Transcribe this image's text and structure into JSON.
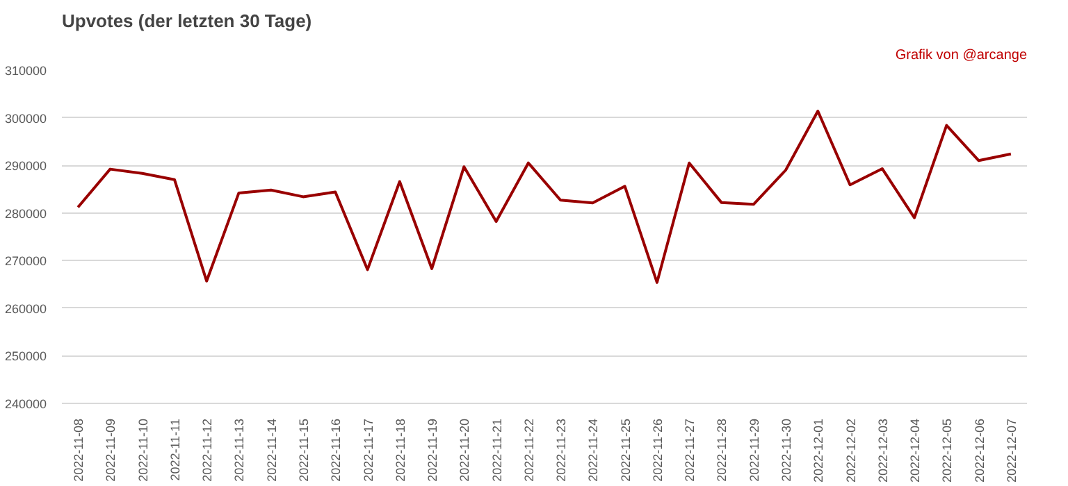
{
  "chart_data": {
    "type": "line",
    "title": "Upvotes (der letzten 30 Tage)",
    "annotations": [
      "Grafik von @arcange"
    ],
    "categories": [
      "2022-11-08",
      "2022-11-09",
      "2022-11-10",
      "2022-11-11",
      "2022-11-12",
      "2022-11-13",
      "2022-11-14",
      "2022-11-15",
      "2022-11-16",
      "2022-11-17",
      "2022-11-18",
      "2022-11-19",
      "2022-11-20",
      "2022-11-21",
      "2022-11-22",
      "2022-11-23",
      "2022-11-24",
      "2022-11-25",
      "2022-11-26",
      "2022-11-27",
      "2022-11-28",
      "2022-11-29",
      "2022-11-30",
      "2022-12-01",
      "2022-12-02",
      "2022-12-03",
      "2022-12-04",
      "2022-12-05",
      "2022-12-06",
      "2022-12-07"
    ],
    "series": [
      {
        "color": "#990000",
        "values": [
          281200,
          289200,
          288300,
          287000,
          265700,
          284200,
          284800,
          283400,
          284400,
          268100,
          286600,
          268300,
          289700,
          278200,
          290500,
          282700,
          282100,
          285600,
          265400,
          290500,
          282200,
          281800,
          289000,
          301400,
          285900,
          289300,
          279000,
          298400,
          291000,
          292400
        ]
      }
    ],
    "ylim": [
      240000,
      310000
    ],
    "yticks": [
      240000,
      250000,
      260000,
      270000,
      280000,
      290000,
      300000,
      310000
    ],
    "grid": "y",
    "marker": "none",
    "line_style": "solid"
  }
}
